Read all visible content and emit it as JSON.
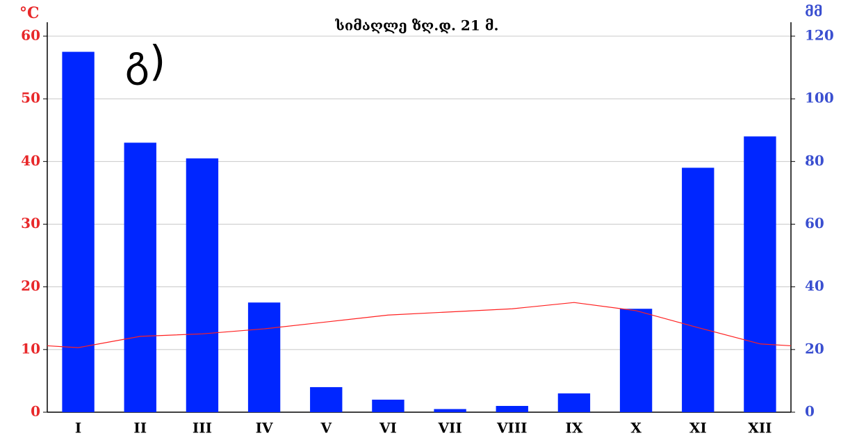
{
  "chart_data": {
    "type": "bar-line",
    "title": "სიმაღლე ზღ.დ. 21 მ.",
    "annotation": "გ)",
    "ylabel": "°C",
    "y2label": "მმ",
    "categories": [
      "I",
      "II",
      "III",
      "IV",
      "V",
      "VI",
      "VII",
      "VIII",
      "IX",
      "X",
      "XI",
      "XII"
    ],
    "series": [
      {
        "name": "precipitation",
        "type": "bar",
        "axis": "y2",
        "color": "#0026ff",
        "values": [
          115,
          86,
          81,
          35,
          8,
          4,
          1,
          2,
          6,
          33,
          78,
          88
        ]
      },
      {
        "name": "temperature",
        "type": "line",
        "axis": "y",
        "color": "#ff2020",
        "values": [
          10.3,
          12.1,
          12.5,
          13.3,
          14.4,
          15.5,
          16,
          16.5,
          17.5,
          16.2,
          13.5,
          10.9
        ]
      }
    ],
    "ylim": [
      0,
      60
    ],
    "yticks": [
      0,
      10,
      20,
      30,
      40,
      50,
      60
    ],
    "ycolor": "#e8282a",
    "y2lim": [
      0,
      120
    ],
    "y2ticks": [
      0,
      20,
      40,
      60,
      80,
      100,
      120
    ],
    "y2color": "#3a4fd0",
    "grid": true
  }
}
